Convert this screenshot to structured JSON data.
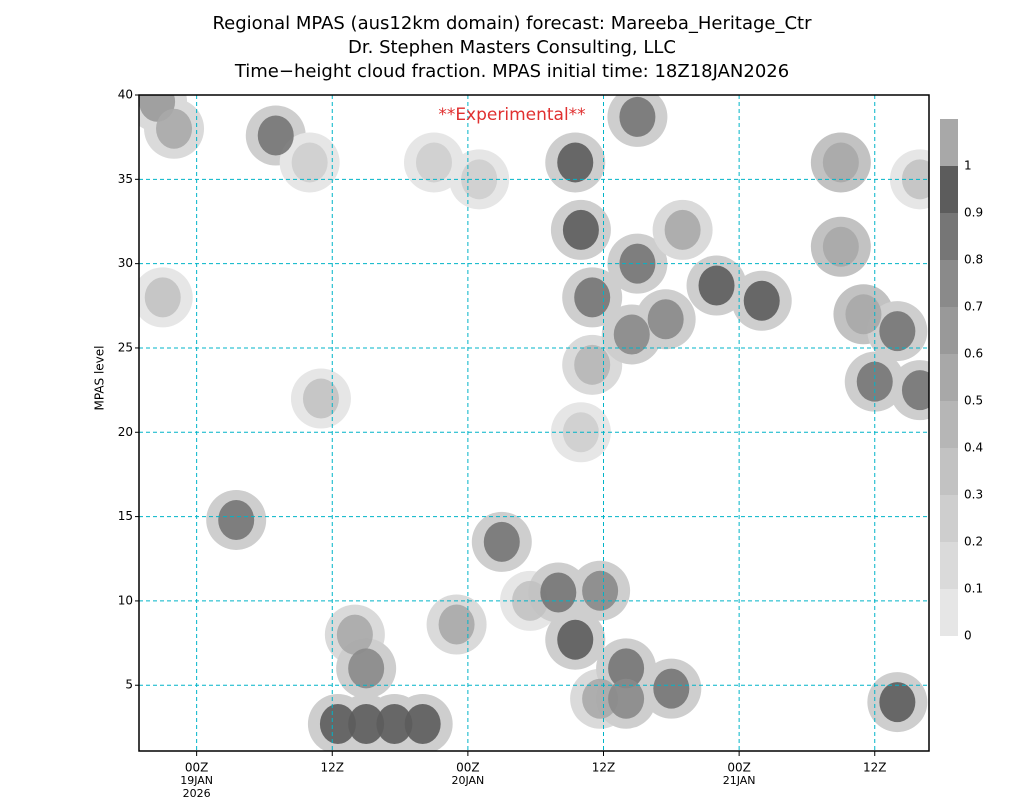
{
  "chart_data": {
    "type": "contour",
    "title_lines": [
      "Regional MPAS (aus12km domain) forecast: Mareeba_Heritage_Ctr",
      "Dr. Stephen Masters Consulting, LLC",
      "Time−height cloud fraction.   MPAS initial time: 18Z18JAN2026"
    ],
    "annotation": "**Experimental**",
    "annotation_color": "#e03030",
    "ylabel": "MPAS level",
    "xlim": [
      -5.1,
      64.8
    ],
    "ylim": [
      1.1,
      40
    ],
    "xticks": [
      {
        "value": 0,
        "label": "00Z"
      },
      {
        "value": 12,
        "label": "12Z"
      },
      {
        "value": 24,
        "label": "00Z"
      },
      {
        "value": 36,
        "label": "12Z"
      },
      {
        "value": 48,
        "label": "00Z"
      },
      {
        "value": 60,
        "label": "12Z"
      }
    ],
    "xtick_dates": [
      {
        "value": 0,
        "lines": [
          "19JAN",
          "2026"
        ]
      },
      {
        "value": 24,
        "lines": [
          "20JAN"
        ]
      },
      {
        "value": 48,
        "lines": [
          "21JAN"
        ]
      }
    ],
    "yticks": [
      5,
      10,
      15,
      20,
      25,
      30,
      35,
      40
    ],
    "grid": true,
    "colorbar": {
      "levels": [
        0,
        0.1,
        0.2,
        0.3,
        0.4,
        0.5,
        0.6,
        0.7,
        0.8,
        0.9,
        1
      ],
      "colors": [
        "#e6e6e6",
        "#dadada",
        "#cecece",
        "#c2c2c2",
        "#b6b6b6",
        "#a8a8a8",
        "#999999",
        "#8a8a8a",
        "#767676",
        "#5c5c5c",
        "#a8a8a8"
      ]
    },
    "cells": [
      [
        -3.5,
        39.6,
        0.6
      ],
      [
        -2,
        38,
        0.5
      ],
      [
        7,
        37.6,
        0.8
      ],
      [
        -3,
        28,
        0.3
      ],
      [
        10,
        36,
        0.2
      ],
      [
        21,
        36,
        0.2
      ],
      [
        25,
        35,
        0.2
      ],
      [
        11,
        22,
        0.3
      ],
      [
        3.5,
        14.8,
        0.8
      ],
      [
        14,
        8,
        0.5
      ],
      [
        15,
        6,
        0.7
      ],
      [
        12.5,
        2.7,
        0.9
      ],
      [
        15,
        2.7,
        0.9
      ],
      [
        17.5,
        2.7,
        0.9
      ],
      [
        20,
        2.7,
        0.9
      ],
      [
        23,
        8.6,
        0.5
      ],
      [
        27,
        13.5,
        0.8
      ],
      [
        29.5,
        10,
        0.3
      ],
      [
        32,
        10.5,
        0.8
      ],
      [
        33.5,
        7.7,
        0.9
      ],
      [
        35.7,
        10.6,
        0.7
      ],
      [
        35.7,
        4.2,
        0.5
      ],
      [
        38,
        6,
        0.8
      ],
      [
        38,
        4.2,
        0.7
      ],
      [
        42,
        4.8,
        0.8
      ],
      [
        34,
        20,
        0.2
      ],
      [
        33.5,
        36,
        0.9
      ],
      [
        34,
        32,
        0.9
      ],
      [
        35,
        28,
        0.8
      ],
      [
        35,
        24,
        0.4
      ],
      [
        39,
        30,
        0.8
      ],
      [
        39,
        38.7,
        0.8
      ],
      [
        38.5,
        25.8,
        0.7
      ],
      [
        41.5,
        26.7,
        0.7
      ],
      [
        43,
        32,
        0.5
      ],
      [
        46,
        28.7,
        0.9
      ],
      [
        50,
        27.8,
        0.9
      ],
      [
        57,
        36,
        1
      ],
      [
        57,
        31,
        1
      ],
      [
        59,
        27,
        1
      ],
      [
        60,
        23,
        0.8
      ],
      [
        62,
        26,
        0.8
      ],
      [
        64,
        22.5,
        0.8
      ],
      [
        64,
        35,
        0.3
      ],
      [
        62,
        4,
        0.9
      ]
    ]
  }
}
